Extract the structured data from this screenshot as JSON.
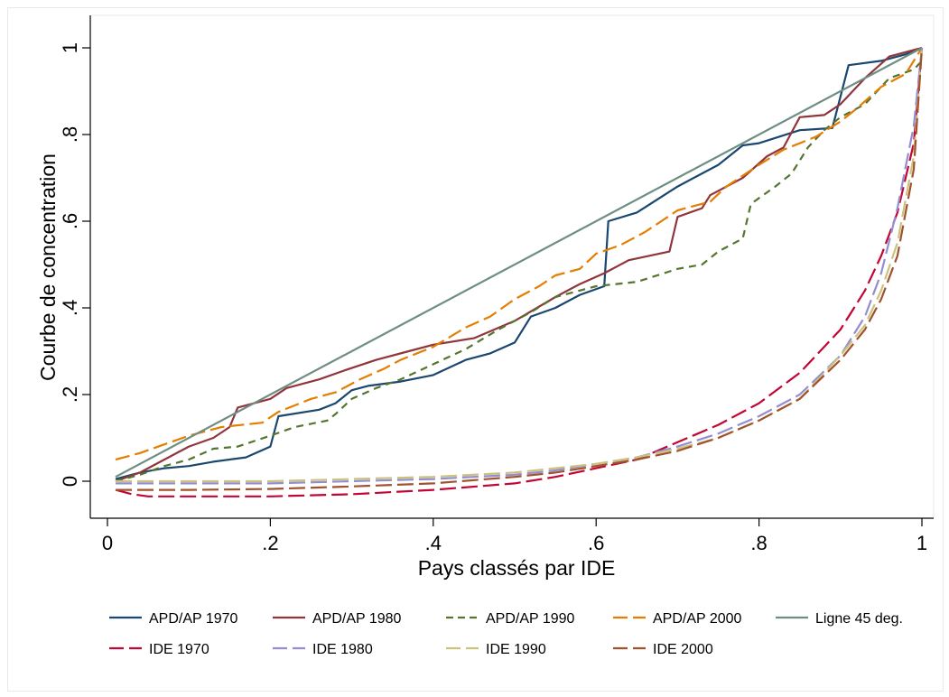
{
  "chart_data": {
    "type": "line",
    "xlabel": "Pays classés par IDE",
    "ylabel": "Courbe de concentration",
    "xlim": [
      0,
      1
    ],
    "ylim": [
      0,
      1
    ],
    "x_ticks": [
      0,
      0.2,
      0.4,
      0.6,
      0.8,
      1
    ],
    "x_tick_labels": [
      "0",
      ".2",
      ".4",
      ".6",
      ".8",
      "1"
    ],
    "y_ticks": [
      0,
      0.2,
      0.4,
      0.6,
      0.8,
      1
    ],
    "y_tick_labels": [
      "0",
      ".2",
      ".4",
      ".6",
      ".8",
      "1"
    ],
    "grid": false,
    "legend_position": "bottom",
    "series": [
      {
        "name": "APD/AP 1970",
        "color": "#1a476f",
        "dash": "solid",
        "points": [
          [
            0.01,
            0.005
          ],
          [
            0.04,
            0.02
          ],
          [
            0.07,
            0.03
          ],
          [
            0.1,
            0.035
          ],
          [
            0.13,
            0.045
          ],
          [
            0.17,
            0.055
          ],
          [
            0.2,
            0.08
          ],
          [
            0.21,
            0.15
          ],
          [
            0.26,
            0.165
          ],
          [
            0.28,
            0.18
          ],
          [
            0.3,
            0.21
          ],
          [
            0.32,
            0.22
          ],
          [
            0.36,
            0.23
          ],
          [
            0.4,
            0.245
          ],
          [
            0.44,
            0.28
          ],
          [
            0.47,
            0.295
          ],
          [
            0.5,
            0.32
          ],
          [
            0.52,
            0.38
          ],
          [
            0.55,
            0.4
          ],
          [
            0.58,
            0.43
          ],
          [
            0.61,
            0.45
          ],
          [
            0.615,
            0.6
          ],
          [
            0.65,
            0.62
          ],
          [
            0.7,
            0.68
          ],
          [
            0.75,
            0.73
          ],
          [
            0.78,
            0.775
          ],
          [
            0.8,
            0.78
          ],
          [
            0.85,
            0.81
          ],
          [
            0.89,
            0.815
          ],
          [
            0.91,
            0.96
          ],
          [
            0.95,
            0.97
          ],
          [
            0.98,
            0.985
          ],
          [
            1.0,
            1.0
          ]
        ]
      },
      {
        "name": "APD/AP 1980",
        "color": "#90353b",
        "dash": "solid",
        "points": [
          [
            0.01,
            0.0
          ],
          [
            0.04,
            0.02
          ],
          [
            0.07,
            0.05
          ],
          [
            0.1,
            0.08
          ],
          [
            0.13,
            0.1
          ],
          [
            0.15,
            0.125
          ],
          [
            0.16,
            0.17
          ],
          [
            0.2,
            0.19
          ],
          [
            0.22,
            0.215
          ],
          [
            0.26,
            0.235
          ],
          [
            0.29,
            0.255
          ],
          [
            0.33,
            0.28
          ],
          [
            0.37,
            0.3
          ],
          [
            0.4,
            0.315
          ],
          [
            0.45,
            0.33
          ],
          [
            0.5,
            0.37
          ],
          [
            0.55,
            0.425
          ],
          [
            0.58,
            0.455
          ],
          [
            0.61,
            0.48
          ],
          [
            0.64,
            0.51
          ],
          [
            0.69,
            0.53
          ],
          [
            0.7,
            0.61
          ],
          [
            0.73,
            0.63
          ],
          [
            0.74,
            0.66
          ],
          [
            0.78,
            0.7
          ],
          [
            0.81,
            0.75
          ],
          [
            0.83,
            0.77
          ],
          [
            0.85,
            0.84
          ],
          [
            0.88,
            0.845
          ],
          [
            0.9,
            0.87
          ],
          [
            0.93,
            0.93
          ],
          [
            0.96,
            0.98
          ],
          [
            1.0,
            1.0
          ]
        ]
      },
      {
        "name": "APD/AP 1990",
        "color": "#55752f",
        "dash": "8,6",
        "points": [
          [
            0.01,
            0.0
          ],
          [
            0.04,
            0.015
          ],
          [
            0.07,
            0.035
          ],
          [
            0.1,
            0.05
          ],
          [
            0.13,
            0.075
          ],
          [
            0.16,
            0.08
          ],
          [
            0.2,
            0.105
          ],
          [
            0.23,
            0.125
          ],
          [
            0.27,
            0.14
          ],
          [
            0.28,
            0.155
          ],
          [
            0.3,
            0.19
          ],
          [
            0.33,
            0.215
          ],
          [
            0.36,
            0.235
          ],
          [
            0.4,
            0.27
          ],
          [
            0.44,
            0.305
          ],
          [
            0.48,
            0.35
          ],
          [
            0.52,
            0.39
          ],
          [
            0.55,
            0.425
          ],
          [
            0.6,
            0.45
          ],
          [
            0.65,
            0.46
          ],
          [
            0.7,
            0.49
          ],
          [
            0.73,
            0.5
          ],
          [
            0.75,
            0.53
          ],
          [
            0.78,
            0.56
          ],
          [
            0.79,
            0.64
          ],
          [
            0.82,
            0.68
          ],
          [
            0.84,
            0.71
          ],
          [
            0.86,
            0.77
          ],
          [
            0.88,
            0.81
          ],
          [
            0.9,
            0.84
          ],
          [
            0.93,
            0.87
          ],
          [
            0.96,
            0.93
          ],
          [
            0.99,
            0.95
          ],
          [
            1.0,
            0.97
          ]
        ]
      },
      {
        "name": "APD/AP 2000",
        "color": "#e37e00",
        "dash": "16,6",
        "points": [
          [
            0.01,
            0.05
          ],
          [
            0.04,
            0.065
          ],
          [
            0.07,
            0.085
          ],
          [
            0.1,
            0.105
          ],
          [
            0.14,
            0.125
          ],
          [
            0.19,
            0.135
          ],
          [
            0.21,
            0.16
          ],
          [
            0.23,
            0.175
          ],
          [
            0.25,
            0.19
          ],
          [
            0.28,
            0.205
          ],
          [
            0.31,
            0.235
          ],
          [
            0.34,
            0.26
          ],
          [
            0.36,
            0.28
          ],
          [
            0.4,
            0.31
          ],
          [
            0.44,
            0.355
          ],
          [
            0.47,
            0.38
          ],
          [
            0.5,
            0.42
          ],
          [
            0.53,
            0.45
          ],
          [
            0.55,
            0.475
          ],
          [
            0.58,
            0.49
          ],
          [
            0.6,
            0.525
          ],
          [
            0.63,
            0.545
          ],
          [
            0.66,
            0.575
          ],
          [
            0.68,
            0.6
          ],
          [
            0.7,
            0.625
          ],
          [
            0.74,
            0.645
          ],
          [
            0.76,
            0.68
          ],
          [
            0.8,
            0.73
          ],
          [
            0.83,
            0.765
          ],
          [
            0.87,
            0.795
          ],
          [
            0.9,
            0.83
          ],
          [
            0.92,
            0.86
          ],
          [
            0.95,
            0.91
          ],
          [
            0.98,
            0.94
          ],
          [
            1.0,
            1.0
          ]
        ]
      },
      {
        "name": "Ligne 45 deg.",
        "color": "#6e8e84",
        "dash": "solid",
        "points": [
          [
            0.01,
            0.01
          ],
          [
            1.0,
            1.0
          ]
        ]
      },
      {
        "name": "IDE 1970",
        "color": "#c10534",
        "dash": "18,6",
        "points": [
          [
            0.01,
            -0.02
          ],
          [
            0.03,
            -0.03
          ],
          [
            0.05,
            -0.035
          ],
          [
            0.1,
            -0.035
          ],
          [
            0.2,
            -0.035
          ],
          [
            0.3,
            -0.03
          ],
          [
            0.4,
            -0.02
          ],
          [
            0.5,
            -0.005
          ],
          [
            0.55,
            0.01
          ],
          [
            0.6,
            0.03
          ],
          [
            0.65,
            0.05
          ],
          [
            0.7,
            0.09
          ],
          [
            0.75,
            0.13
          ],
          [
            0.8,
            0.18
          ],
          [
            0.85,
            0.25
          ],
          [
            0.9,
            0.35
          ],
          [
            0.93,
            0.44
          ],
          [
            0.95,
            0.52
          ],
          [
            0.97,
            0.62
          ],
          [
            0.99,
            0.78
          ],
          [
            1.0,
            1.0
          ]
        ]
      },
      {
        "name": "IDE 1980",
        "color": "#938dd2",
        "dash": "18,6",
        "points": [
          [
            0.01,
            -0.005
          ],
          [
            0.1,
            -0.005
          ],
          [
            0.2,
            -0.005
          ],
          [
            0.3,
            0.0
          ],
          [
            0.4,
            0.005
          ],
          [
            0.5,
            0.015
          ],
          [
            0.55,
            0.025
          ],
          [
            0.6,
            0.04
          ],
          [
            0.65,
            0.055
          ],
          [
            0.7,
            0.08
          ],
          [
            0.75,
            0.11
          ],
          [
            0.8,
            0.15
          ],
          [
            0.85,
            0.2
          ],
          [
            0.9,
            0.29
          ],
          [
            0.93,
            0.38
          ],
          [
            0.95,
            0.48
          ],
          [
            0.97,
            0.63
          ],
          [
            0.99,
            0.82
          ],
          [
            1.0,
            1.0
          ]
        ]
      },
      {
        "name": "IDE 1990",
        "color": "#cac27e",
        "dash": "18,6",
        "points": [
          [
            0.01,
            0.0
          ],
          [
            0.1,
            0.0
          ],
          [
            0.2,
            0.0
          ],
          [
            0.3,
            0.005
          ],
          [
            0.4,
            0.01
          ],
          [
            0.5,
            0.02
          ],
          [
            0.55,
            0.03
          ],
          [
            0.6,
            0.04
          ],
          [
            0.65,
            0.055
          ],
          [
            0.7,
            0.075
          ],
          [
            0.75,
            0.1
          ],
          [
            0.8,
            0.14
          ],
          [
            0.85,
            0.19
          ],
          [
            0.9,
            0.29
          ],
          [
            0.93,
            0.36
          ],
          [
            0.95,
            0.44
          ],
          [
            0.97,
            0.55
          ],
          [
            0.99,
            0.75
          ],
          [
            1.0,
            1.0
          ]
        ]
      },
      {
        "name": "IDE 2000",
        "color": "#a0522d",
        "dash": "18,6",
        "points": [
          [
            0.01,
            -0.02
          ],
          [
            0.1,
            -0.02
          ],
          [
            0.2,
            -0.018
          ],
          [
            0.3,
            -0.012
          ],
          [
            0.4,
            -0.005
          ],
          [
            0.5,
            0.01
          ],
          [
            0.55,
            0.02
          ],
          [
            0.6,
            0.035
          ],
          [
            0.65,
            0.05
          ],
          [
            0.7,
            0.07
          ],
          [
            0.75,
            0.1
          ],
          [
            0.8,
            0.14
          ],
          [
            0.85,
            0.19
          ],
          [
            0.9,
            0.28
          ],
          [
            0.93,
            0.35
          ],
          [
            0.95,
            0.42
          ],
          [
            0.97,
            0.52
          ],
          [
            0.99,
            0.72
          ],
          [
            1.0,
            1.0
          ]
        ]
      }
    ]
  }
}
